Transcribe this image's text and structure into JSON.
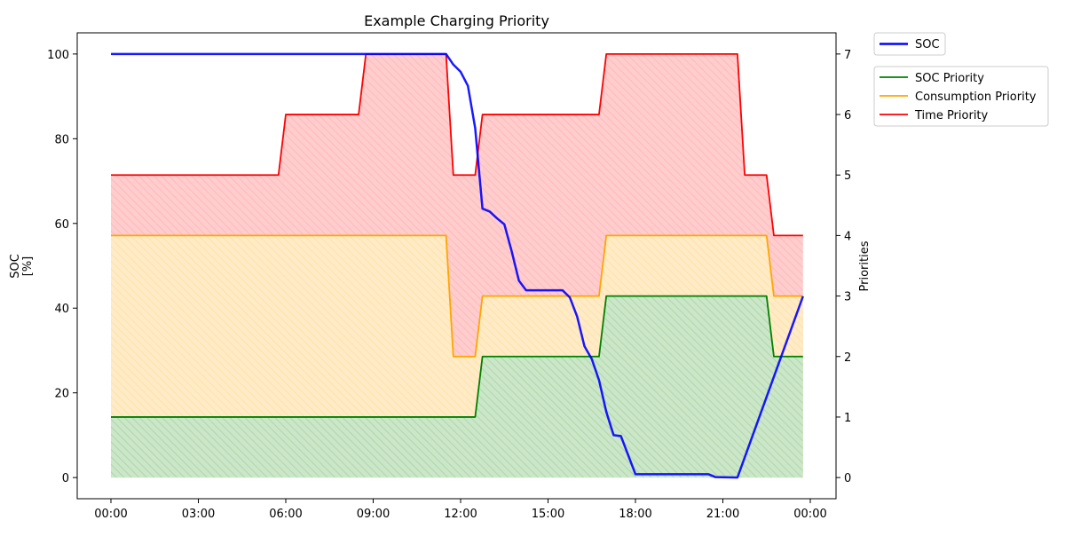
{
  "chart_data": {
    "type": "line",
    "title": "Example Charging Priority",
    "ylabel": "SOC\n[%]",
    "y2label": "Priorities",
    "xlabel": "",
    "x_tick_labels": [
      "00:00",
      "03:00",
      "06:00",
      "09:00",
      "12:00",
      "15:00",
      "18:00",
      "21:00",
      "00:00"
    ],
    "x_range": [
      "00:00",
      "24:00"
    ],
    "ylim": [
      -5,
      105
    ],
    "y_ticks": [
      0,
      20,
      40,
      60,
      80,
      100
    ],
    "y2lim": [
      -0.35,
      7.35
    ],
    "y2_ticks": [
      0,
      1,
      2,
      3,
      4,
      5,
      6,
      7
    ],
    "grid": false,
    "legend_position": "outside top-right",
    "soc_series": {
      "name": "SOC",
      "color": "#0000ff",
      "axis": "left",
      "points": [
        [
          "00:00",
          100
        ],
        [
          "11:30",
          100
        ],
        [
          "11:45",
          97.5
        ],
        [
          "12:00",
          95.8
        ],
        [
          "12:15",
          92.5
        ],
        [
          "12:30",
          82.5
        ],
        [
          "12:45",
          63.5
        ],
        [
          "13:00",
          62.8
        ],
        [
          "13:15",
          61.2
        ],
        [
          "13:30",
          59.8
        ],
        [
          "13:45",
          53.5
        ],
        [
          "14:00",
          46.5
        ],
        [
          "14:15",
          44.2
        ],
        [
          "15:30",
          44.2
        ],
        [
          "15:45",
          42.5
        ],
        [
          "16:00",
          38.0
        ],
        [
          "16:15",
          31.0
        ],
        [
          "16:30",
          28.0
        ],
        [
          "16:45",
          23.0
        ],
        [
          "17:00",
          15.5
        ],
        [
          "17:15",
          10.0
        ],
        [
          "17:30",
          9.8
        ],
        [
          "18:00",
          0.8
        ],
        [
          "20:30",
          0.8
        ],
        [
          "20:45",
          0.1
        ],
        [
          "21:30",
          0.0
        ],
        [
          "23:45",
          42.8
        ]
      ]
    },
    "priority_series": [
      {
        "name": "SOC Priority",
        "color": "#008000",
        "fill": "#2ca02c",
        "axis": "right",
        "points": [
          [
            "00:00",
            1
          ],
          [
            "12:30",
            1
          ],
          [
            "12:45",
            2
          ],
          [
            "16:45",
            2
          ],
          [
            "17:00",
            3
          ],
          [
            "22:30",
            3
          ],
          [
            "22:45",
            2
          ],
          [
            "23:45",
            2
          ]
        ]
      },
      {
        "name": "Consumption Priority",
        "color": "#ffa500",
        "fill": "#ffc34d",
        "axis": "right",
        "points": [
          [
            "00:00",
            4
          ],
          [
            "11:30",
            4
          ],
          [
            "11:45",
            2
          ],
          [
            "12:30",
            2
          ],
          [
            "12:45",
            3
          ],
          [
            "16:45",
            3
          ],
          [
            "17:00",
            4
          ],
          [
            "22:30",
            4
          ],
          [
            "22:45",
            3
          ],
          [
            "23:45",
            3
          ]
        ]
      },
      {
        "name": "Time Priority",
        "color": "#ff0000",
        "fill": "#ff7f7f",
        "axis": "right",
        "points": [
          [
            "00:00",
            5
          ],
          [
            "05:45",
            5
          ],
          [
            "06:00",
            6
          ],
          [
            "08:30",
            6
          ],
          [
            "08:45",
            7
          ],
          [
            "11:30",
            7
          ],
          [
            "11:45",
            5
          ],
          [
            "12:30",
            5
          ],
          [
            "12:45",
            6
          ],
          [
            "16:45",
            6
          ],
          [
            "17:00",
            7
          ],
          [
            "21:30",
            7
          ],
          [
            "21:45",
            5
          ],
          [
            "22:30",
            5
          ],
          [
            "22:45",
            4
          ],
          [
            "23:45",
            4
          ]
        ]
      }
    ]
  }
}
